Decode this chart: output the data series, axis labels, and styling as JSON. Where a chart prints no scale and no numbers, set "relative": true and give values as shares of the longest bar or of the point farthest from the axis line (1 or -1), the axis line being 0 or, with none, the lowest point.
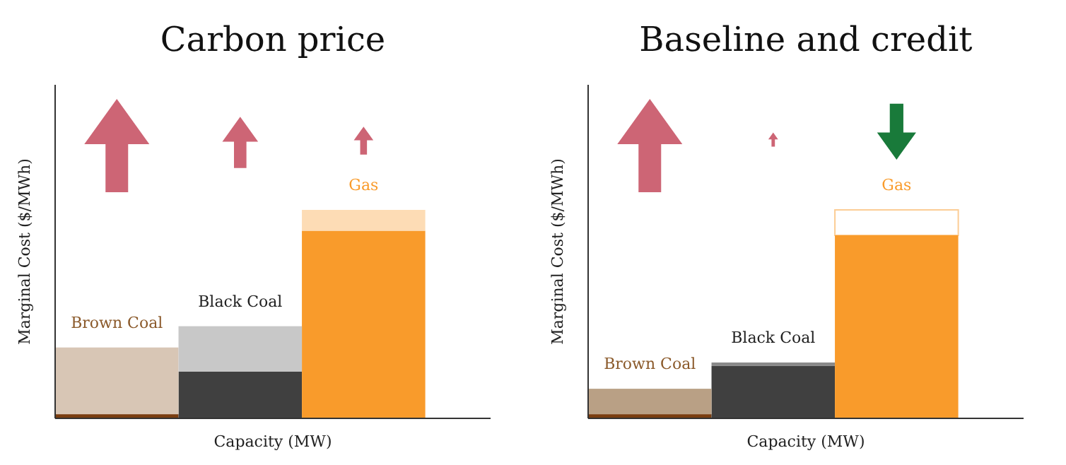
{
  "chart_data": [
    {
      "type": "bar",
      "title": "Carbon price",
      "xlabel": "Capacity (MW)",
      "ylabel": "Marginal Cost ($/MWh)",
      "relative": true,
      "stacked": true,
      "categories": [
        null,
        null,
        null
      ],
      "annotations": [
        "Brown Coal",
        "Black Coal",
        "Gas"
      ],
      "series": [
        {
          "colors": [
            "#7a3e10",
            "#404040",
            "#f99b2b"
          ],
          "values": [
            0.02,
            0.225,
            0.9
          ]
        },
        {
          "colors": [
            "#d8c6b5",
            "#c8c8c8",
            "#fddcb5"
          ],
          "values": [
            0.32,
            0.217,
            0.1
          ]
        }
      ]
    },
    {
      "type": "bar",
      "title": "Baseline and credit",
      "xlabel": "Capacity (MW)",
      "ylabel": "Marginal Cost ($/MWh)",
      "relative": true,
      "stacked": true,
      "categories": [
        null,
        null,
        null
      ],
      "annotations": [
        "Brown Coal",
        "Black Coal",
        "Gas"
      ],
      "series": [
        {
          "colors": [
            "#7a3e10",
            "#404040",
            "#f99b2b"
          ],
          "values": [
            0.02,
            0.251,
            0.878
          ]
        },
        {
          "colors": [
            "#b9a085",
            "#8a8a8a",
            "#ffffff"
          ],
          "values": [
            0.122,
            0.017,
            0.122
          ]
        }
      ]
    }
  ]
}
